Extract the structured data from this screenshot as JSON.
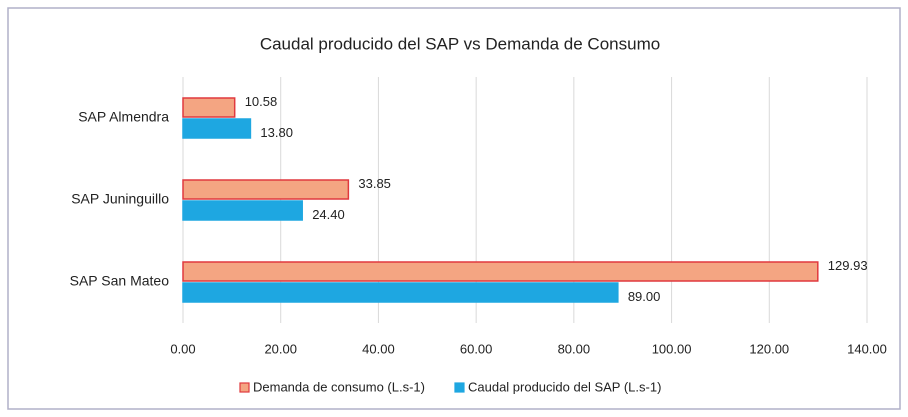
{
  "chart_data": {
    "type": "hbar",
    "title": "Caudal producido del SAP vs Demanda de Consumo",
    "categories": [
      "SAP Almendra",
      "SAP Juninguillo",
      "SAP San Mateo"
    ],
    "series": [
      {
        "name": "Demanda de consumo (L.s-1)",
        "color": "#f4a582",
        "edge": "#e0393e",
        "values": [
          10.58,
          33.85,
          129.93
        ],
        "value_labels": [
          "10.58",
          "33.85",
          "129.93"
        ]
      },
      {
        "name": "Caudal producido del SAP (L.s-1)",
        "color": "#1ea7e1",
        "edge": "#1ea7e1",
        "values": [
          13.8,
          24.4,
          89.0
        ],
        "value_labels": [
          "13.80",
          "24.40",
          "89.00"
        ]
      }
    ],
    "xlim": [
      0,
      140
    ],
    "xticks": [
      {
        "value": 0,
        "label": "0.00"
      },
      {
        "value": 20,
        "label": "20.00"
      },
      {
        "value": 40,
        "label": "40.00"
      },
      {
        "value": 60,
        "label": "60.00"
      },
      {
        "value": 80,
        "label": "80.00"
      },
      {
        "value": 100,
        "label": "100.00"
      },
      {
        "value": 120,
        "label": "120.00"
      },
      {
        "value": 140,
        "label": "140.00"
      }
    ],
    "grid": true
  }
}
